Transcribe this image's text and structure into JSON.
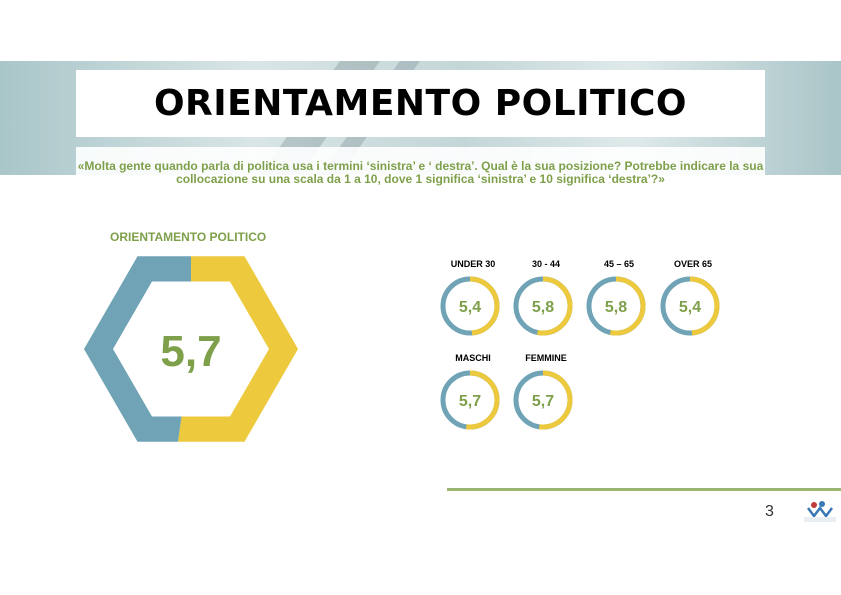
{
  "title": "ORIENTAMENTO POLITICO",
  "question": "«Molta gente quando parla di politica usa i termini ‘sinistra’ e ‘ destra’. Qual è la sua posizione? Potrebbe indicare la sua collocazione su una scala da 1 a 10, dove 1 significa ‘sinistra’ e 10 significa ‘destra’?»",
  "page_number": "3",
  "colors": {
    "blue": "#6fa3b5",
    "yellow": "#ecc93d",
    "green": "#7ea04a"
  },
  "chart_data": [
    {
      "type": "donut",
      "title": "ORIENTAMENTO POLITICO",
      "value": 5.7,
      "display_value": "5,7",
      "scale": [
        1,
        10
      ]
    },
    {
      "type": "donut",
      "group": "age",
      "items": [
        {
          "label": "UNDER 30",
          "value": 5.4,
          "display_value": "5,4"
        },
        {
          "label": "30 - 44",
          "value": 5.8,
          "display_value": "5,8"
        },
        {
          "label": "45 – 65",
          "value": 5.8,
          "display_value": "5,8"
        },
        {
          "label": "OVER 65",
          "value": 5.4,
          "display_value": "5,4"
        }
      ],
      "scale": [
        1,
        10
      ]
    },
    {
      "type": "donut",
      "group": "gender",
      "items": [
        {
          "label": "MASCHI",
          "value": 5.7,
          "display_value": "5,7"
        },
        {
          "label": "FEMMINE",
          "value": 5.7,
          "display_value": "5,7"
        }
      ],
      "scale": [
        1,
        10
      ]
    }
  ]
}
